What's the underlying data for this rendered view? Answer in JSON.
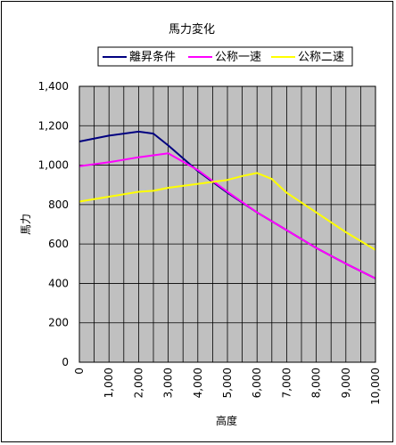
{
  "chart_data": {
    "type": "line",
    "title": "馬力変化",
    "xlabel": "高度",
    "ylabel": "馬力",
    "xlim": [
      0,
      10000
    ],
    "ylim": [
      0,
      1400
    ],
    "x_ticks": [
      0,
      1000,
      2000,
      3000,
      4000,
      5000,
      6000,
      7000,
      8000,
      9000,
      10000
    ],
    "x_tick_labels": [
      "0",
      "1,000",
      "2,000",
      "3,000",
      "4,000",
      "5,000",
      "6,000",
      "7,000",
      "8,000",
      "9,000",
      "10,000"
    ],
    "y_ticks": [
      0,
      200,
      400,
      600,
      800,
      1000,
      1200,
      1400
    ],
    "y_tick_labels": [
      "0",
      "200",
      "400",
      "600",
      "800",
      "1,000",
      "1,200",
      "1,400"
    ],
    "grid": true,
    "grid_x_minor_step": 500,
    "plot_background": "#c0c0c0",
    "legend_position": "top",
    "series": [
      {
        "name": "離昇条件",
        "color": "#000080",
        "x": [
          0,
          1000,
          2000,
          2500,
          3000,
          4000,
          5000,
          6000,
          7000,
          8000,
          9000,
          10000
        ],
        "y": [
          1120,
          1150,
          1170,
          1160,
          1100,
          970,
          860,
          760,
          670,
          580,
          500,
          425
        ]
      },
      {
        "name": "公称一速",
        "color": "#ff00ff",
        "x": [
          0,
          1000,
          2000,
          2500,
          3000,
          4000,
          5000,
          6000,
          7000,
          8000,
          9000,
          10000
        ],
        "y": [
          995,
          1015,
          1040,
          1050,
          1060,
          975,
          865,
          760,
          670,
          580,
          500,
          425
        ]
      },
      {
        "name": "公称二速",
        "color": "#ffff00",
        "x": [
          0,
          1000,
          2000,
          2500,
          3000,
          4000,
          5000,
          5500,
          6000,
          6500,
          7000,
          8000,
          9000,
          10000
        ],
        "y": [
          815,
          840,
          865,
          870,
          885,
          905,
          925,
          945,
          960,
          930,
          860,
          760,
          660,
          570
        ]
      }
    ]
  }
}
